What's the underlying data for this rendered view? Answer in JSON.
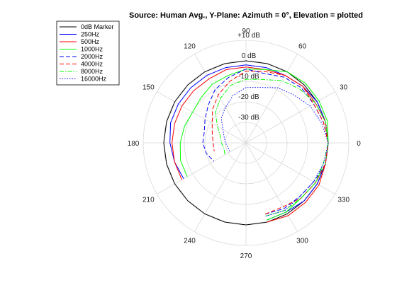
{
  "chart_data": {
    "type": "line",
    "subtype": "polar",
    "title": "Source: Human Avg., Y-Plane: Azimuth = 0°, Elevation = plotted",
    "angle_unit": "degrees",
    "angle_ticks": [
      0,
      30,
      60,
      90,
      120,
      150,
      180,
      210,
      240,
      270,
      300,
      330
    ],
    "angle_tick_labels": [
      "0",
      "30",
      "60",
      "90",
      "120",
      "150",
      "180",
      "210",
      "240",
      "270",
      "300",
      "330"
    ],
    "radial_ticks_db": [
      10,
      0,
      -10,
      -20,
      -30
    ],
    "radial_tick_labels": [
      "+10 dB",
      "0 dB",
      "-10 dB",
      "-20 dB",
      "-30 dB"
    ],
    "radial_range_db": [
      -40,
      10
    ],
    "grid": true,
    "legend_position": "top-left",
    "series": [
      {
        "name": "0dB Marker",
        "color": "#000000",
        "dash": "solid",
        "points": [
          [
            0,
            0
          ],
          [
            15,
            0
          ],
          [
            30,
            0
          ],
          [
            45,
            0
          ],
          [
            60,
            0
          ],
          [
            75,
            0
          ],
          [
            90,
            0
          ],
          [
            105,
            0
          ],
          [
            120,
            0
          ],
          [
            135,
            0
          ],
          [
            150,
            0
          ],
          [
            165,
            0
          ],
          [
            180,
            0
          ],
          [
            195,
            0
          ],
          [
            210,
            0
          ],
          [
            225,
            0
          ],
          [
            240,
            0
          ],
          [
            255,
            0
          ],
          [
            270,
            0
          ],
          [
            285,
            0
          ],
          [
            300,
            0
          ],
          [
            315,
            0
          ],
          [
            330,
            0
          ],
          [
            345,
            0
          ],
          [
            360,
            0
          ]
        ]
      },
      {
        "name": "250Hz",
        "color": "#0000ff",
        "dash": "solid",
        "points": [
          [
            285,
            -1
          ],
          [
            300,
            -1
          ],
          [
            315,
            0
          ],
          [
            330,
            0
          ],
          [
            345,
            0
          ],
          [
            0,
            0
          ],
          [
            15,
            0
          ],
          [
            30,
            0
          ],
          [
            45,
            -1
          ],
          [
            60,
            -2
          ],
          [
            75,
            -2
          ],
          [
            90,
            -2
          ],
          [
            105,
            -2
          ],
          [
            120,
            -2
          ],
          [
            135,
            -2
          ],
          [
            150,
            -2
          ],
          [
            165,
            -2
          ],
          [
            180,
            -3
          ],
          [
            195,
            -4
          ],
          [
            210,
            -5
          ]
        ]
      },
      {
        "name": "500Hz",
        "color": "#ff0000",
        "dash": "solid",
        "points": [
          [
            285,
            0
          ],
          [
            300,
            1
          ],
          [
            315,
            1
          ],
          [
            330,
            1
          ],
          [
            345,
            0
          ],
          [
            0,
            0
          ],
          [
            15,
            0
          ],
          [
            30,
            -1
          ],
          [
            45,
            -1
          ],
          [
            60,
            -2
          ],
          [
            75,
            -3
          ],
          [
            90,
            -3
          ],
          [
            105,
            -3
          ],
          [
            120,
            -4
          ],
          [
            135,
            -4
          ],
          [
            150,
            -4
          ],
          [
            165,
            -4
          ],
          [
            180,
            -4
          ],
          [
            195,
            -4
          ],
          [
            210,
            -4
          ]
        ]
      },
      {
        "name": "1000Hz",
        "color": "#00ff00",
        "dash": "solid",
        "points": [
          [
            285,
            -1
          ],
          [
            300,
            -1
          ],
          [
            315,
            -2
          ],
          [
            330,
            -1
          ],
          [
            345,
            0
          ],
          [
            0,
            0
          ],
          [
            15,
            1
          ],
          [
            30,
            1
          ],
          [
            45,
            1
          ],
          [
            60,
            0
          ],
          [
            75,
            -3
          ],
          [
            90,
            -4
          ],
          [
            105,
            -6
          ],
          [
            120,
            -7
          ],
          [
            135,
            -9
          ],
          [
            150,
            -10
          ],
          [
            165,
            -9
          ],
          [
            180,
            -8
          ],
          [
            195,
            -7
          ],
          [
            210,
            -7
          ]
        ]
      },
      {
        "name": "2000Hz",
        "color": "#0000ff",
        "dash": "dashed",
        "points": [
          [
            285,
            -4
          ],
          [
            300,
            -3
          ],
          [
            315,
            -3
          ],
          [
            330,
            -2
          ],
          [
            345,
            0
          ],
          [
            0,
            0
          ],
          [
            15,
            -1
          ],
          [
            30,
            -2
          ],
          [
            45,
            -2
          ],
          [
            60,
            -3
          ],
          [
            75,
            -5
          ],
          [
            90,
            -4
          ],
          [
            105,
            -7
          ],
          [
            120,
            -10
          ],
          [
            135,
            -14
          ],
          [
            150,
            -17
          ],
          [
            165,
            -19
          ],
          [
            180,
            -19
          ],
          [
            195,
            -20
          ],
          [
            210,
            -22
          ]
        ]
      },
      {
        "name": "4000Hz",
        "color": "#ff0000",
        "dash": "dashed",
        "points": [
          [
            285,
            -4
          ],
          [
            300,
            -4
          ],
          [
            315,
            -2
          ],
          [
            330,
            -1
          ],
          [
            345,
            0
          ],
          [
            0,
            0
          ],
          [
            15,
            -1
          ],
          [
            30,
            -2
          ],
          [
            45,
            -1
          ],
          [
            60,
            -2
          ],
          [
            75,
            -4
          ],
          [
            90,
            -5
          ],
          [
            105,
            -9
          ],
          [
            120,
            -13
          ],
          [
            135,
            -17
          ],
          [
            150,
            -21
          ],
          [
            165,
            -23
          ],
          [
            180,
            -24
          ],
          [
            195,
            -24
          ]
        ]
      },
      {
        "name": "8000Hz",
        "color": "#00ff00",
        "dash": "dashdot",
        "points": [
          [
            285,
            -3
          ],
          [
            300,
            -2
          ],
          [
            315,
            -2
          ],
          [
            330,
            -1
          ],
          [
            345,
            -1
          ],
          [
            0,
            0
          ],
          [
            15,
            0
          ],
          [
            30,
            -1
          ],
          [
            45,
            -3
          ],
          [
            60,
            -5
          ],
          [
            75,
            -8
          ],
          [
            90,
            -9
          ],
          [
            105,
            -11
          ],
          [
            120,
            -15
          ],
          [
            135,
            -19
          ],
          [
            150,
            -24
          ],
          [
            165,
            -27
          ],
          [
            180,
            -28
          ],
          [
            195,
            -29
          ],
          [
            210,
            -28
          ]
        ]
      },
      {
        "name": "16000Hz",
        "color": "#0000ff",
        "dash": "dotted",
        "points": [
          [
            285,
            -3
          ],
          [
            300,
            -2
          ],
          [
            315,
            -3
          ],
          [
            330,
            -2
          ],
          [
            345,
            -1
          ],
          [
            0,
            0
          ],
          [
            15,
            -2
          ],
          [
            30,
            -4
          ],
          [
            45,
            -7
          ],
          [
            60,
            -9
          ],
          [
            75,
            -12
          ],
          [
            90,
            -13
          ],
          [
            105,
            -16
          ],
          [
            120,
            -20
          ],
          [
            135,
            -23
          ],
          [
            150,
            -27
          ],
          [
            165,
            -29
          ],
          [
            180,
            -30
          ],
          [
            195,
            -31
          ],
          [
            210,
            -31
          ]
        ]
      }
    ]
  }
}
